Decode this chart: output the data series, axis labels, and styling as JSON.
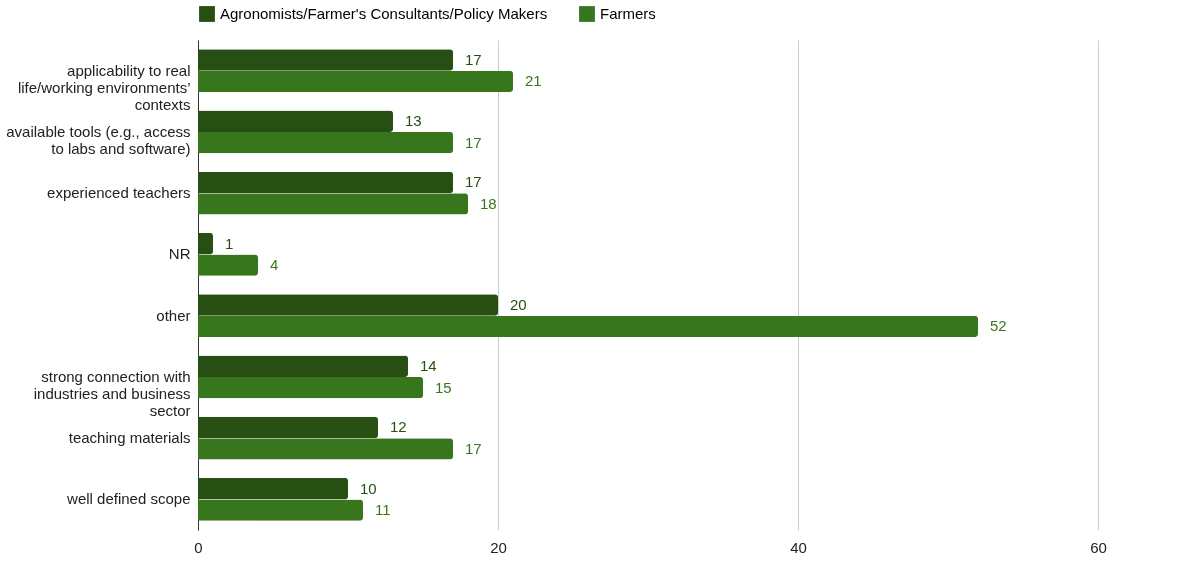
{
  "chart_data": {
    "type": "bar",
    "orientation": "horizontal",
    "categories": [
      "applicability to real life/working environments’ contexts",
      "available tools (e.g., access to labs and software)",
      "experienced teachers",
      "NR",
      "other",
      "strong connection with industries and business sector",
      "teaching materials",
      "well defined scope"
    ],
    "series": [
      {
        "name": "Agronomists/Farmer's Consultants/Policy Makers",
        "color": "#274e13",
        "values": [
          17,
          13,
          17,
          1,
          20,
          14,
          12,
          10
        ]
      },
      {
        "name": "Farmers",
        "color": "#38761d",
        "values": [
          21,
          17,
          18,
          4,
          52,
          15,
          17,
          11
        ]
      }
    ],
    "xlim": [
      0,
      60
    ],
    "xticks": [
      0,
      20,
      40,
      60
    ],
    "grid": "x",
    "legend": "top",
    "data_labels": true
  }
}
